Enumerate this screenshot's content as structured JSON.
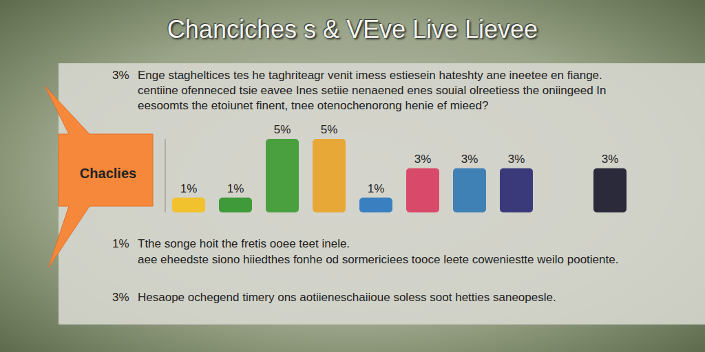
{
  "chart_data": {
    "type": "bar",
    "title": "Chanciches s & VEve Live Lievee",
    "callout": "Chaclies",
    "notes": [
      {
        "marker": "3%",
        "lines": [
          "Enge stagheltices tes he taghriteagr venit imess estiesein hateshty ane ineetee en fiange.",
          "centiine ofenneced tsie eavee Ines setiie nenaened enes souial olreetiess the oniingeed In",
          "eesoomts the etoiunet finent, tnee otenochenorong henie ef mieed?"
        ]
      },
      {
        "marker": "1%",
        "lines": [
          "Tthe songe hoit the fretis ooee teet inele.",
          "aee eheedste siono hiiedthes fonhe od sormericiees tooce leete coweniestte weilo pootiente."
        ]
      },
      {
        "marker": "3%",
        "lines": [
          "Hesaope ochegend timery ons aotiieneschaiioue soless soot hetties saneopesle."
        ]
      }
    ],
    "categories": [
      null,
      null,
      null,
      null,
      null,
      null,
      null,
      null,
      null,
      null
    ],
    "values": [
      1,
      1,
      5,
      5,
      1,
      3,
      3,
      3,
      null,
      3
    ],
    "value_labels": [
      "1%",
      "1%",
      "5%",
      "5%",
      "1%",
      "3%",
      "3%",
      "3%",
      null,
      "3%"
    ],
    "colors": [
      "#f2c12e",
      "#3f9a3a",
      "#4aa03f",
      "#e8a838",
      "#3a7fc0",
      "#d94a6a",
      "#3f80b5",
      "#3a3a7a",
      null,
      "#2a2a3a"
    ],
    "ylim": [
      0,
      5
    ],
    "data_labels": true,
    "tick_labels": false,
    "grid": false
  }
}
